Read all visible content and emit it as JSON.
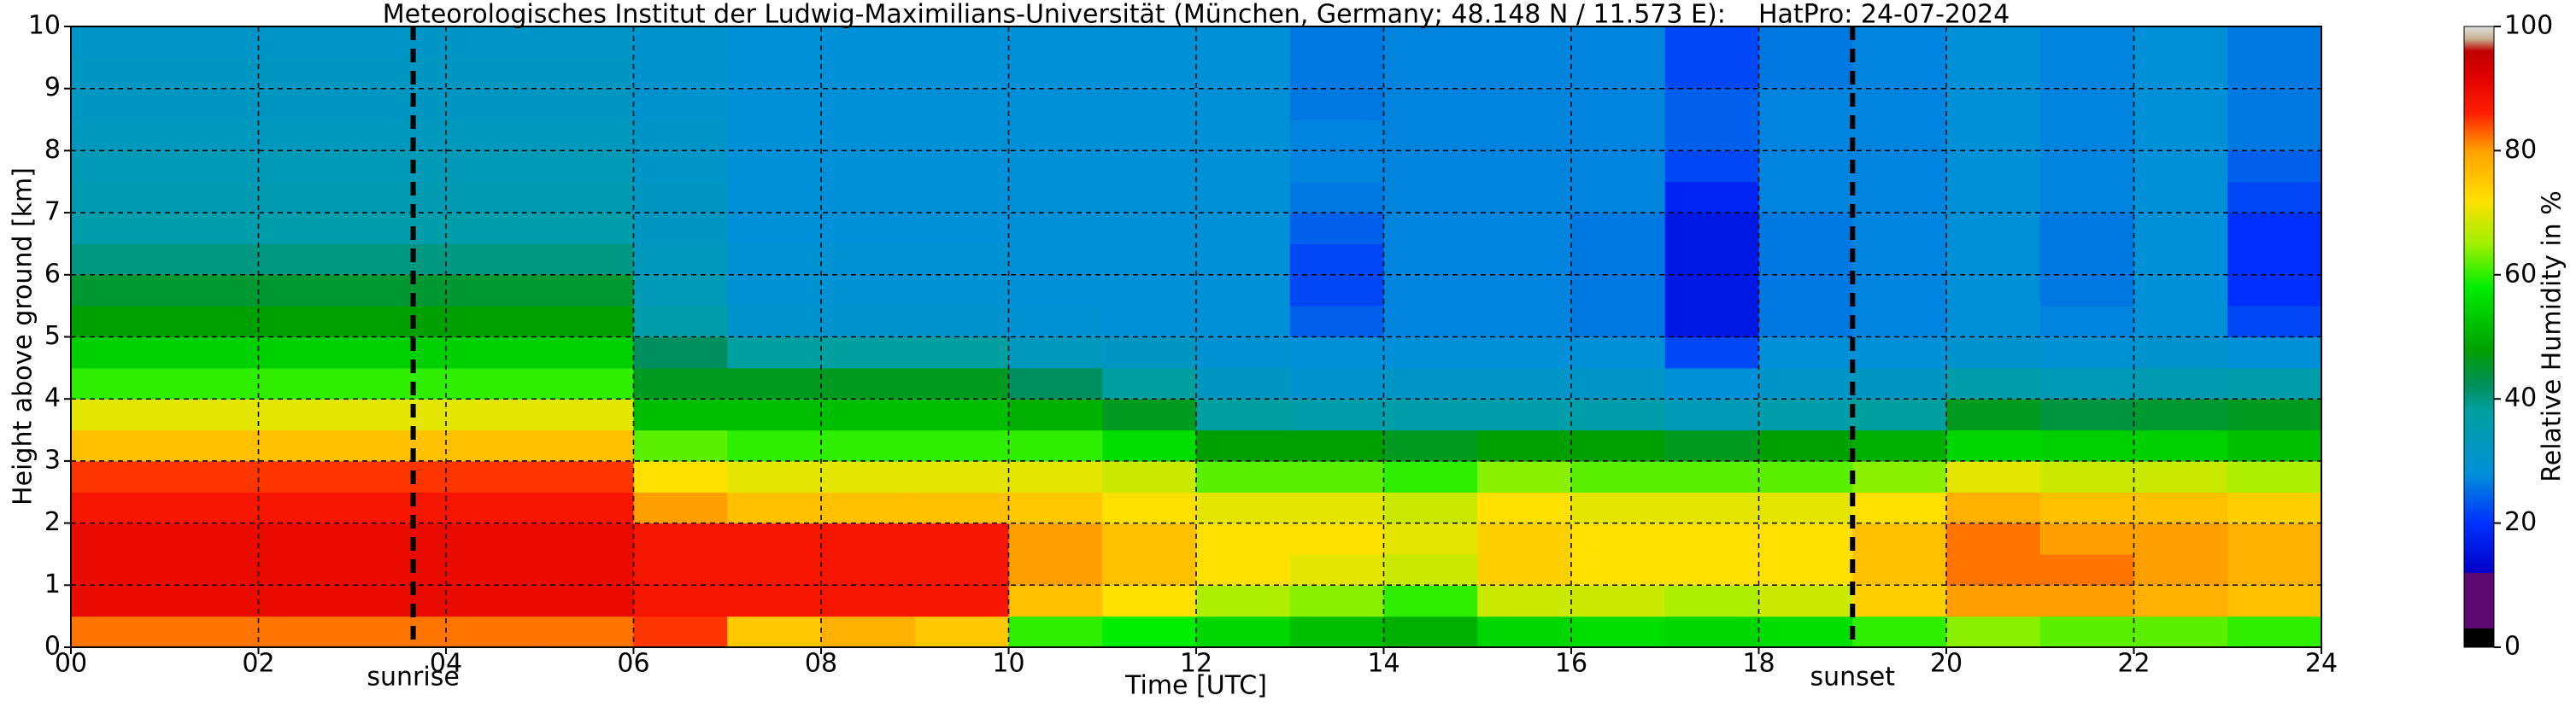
{
  "chart_data": {
    "type": "heatmap",
    "title": "Meteorologisches Institut der Ludwig-Maximilians-Universität (München, Germany; 48.148 N / 11.573 E):    HatPro: 24-07-2024",
    "xlabel": "Time [UTC]",
    "ylabel": "Height above ground [km]",
    "colorbar_label": "Relative Humidity in %",
    "xlim": [
      0,
      24
    ],
    "xticks": [
      {
        "value": 0,
        "label": "00"
      },
      {
        "value": 2,
        "label": "02"
      },
      {
        "value": 4,
        "label": "04"
      },
      {
        "value": 6,
        "label": "06"
      },
      {
        "value": 8,
        "label": "08"
      },
      {
        "value": 10,
        "label": "10"
      },
      {
        "value": 12,
        "label": "12"
      },
      {
        "value": 14,
        "label": "14"
      },
      {
        "value": 16,
        "label": "16"
      },
      {
        "value": 18,
        "label": "18"
      },
      {
        "value": 20,
        "label": "20"
      },
      {
        "value": 22,
        "label": "22"
      },
      {
        "value": 24,
        "label": "24"
      }
    ],
    "ylim": [
      0,
      10
    ],
    "yticks": [
      0,
      1,
      2,
      3,
      4,
      5,
      6,
      7,
      8,
      9,
      10
    ],
    "clim": [
      0,
      100
    ],
    "cticks": [
      0,
      20,
      40,
      60,
      80,
      100
    ],
    "grid": true,
    "colorscale": [
      [
        0,
        "#000000"
      ],
      [
        3,
        "#000000"
      ],
      [
        3,
        "#5a0a6e"
      ],
      [
        12,
        "#5a0a6e"
      ],
      [
        12,
        "#0000c8"
      ],
      [
        20,
        "#0030ff"
      ],
      [
        28,
        "#0090d8"
      ],
      [
        38,
        "#00a0a0"
      ],
      [
        42,
        "#009060"
      ],
      [
        48,
        "#00a000"
      ],
      [
        58,
        "#00ee00"
      ],
      [
        65,
        "#a0f000"
      ],
      [
        72,
        "#ffe000"
      ],
      [
        80,
        "#ffa000"
      ],
      [
        86,
        "#ff2000"
      ],
      [
        92,
        "#e00000"
      ],
      [
        96,
        "#c00000"
      ],
      [
        98,
        "#c8b090"
      ],
      [
        100,
        "#e0e0e0"
      ]
    ],
    "x_bins": [
      0,
      1,
      2,
      3,
      4,
      5,
      6,
      7,
      8,
      9,
      10,
      11,
      12,
      13,
      14,
      15,
      16,
      17,
      18,
      19,
      20,
      21,
      22,
      23,
      24
    ],
    "y_bins": [
      0,
      0.5,
      1,
      1.5,
      2,
      2.5,
      3,
      3.5,
      4,
      4.5,
      5,
      5.5,
      6,
      6.5,
      7,
      7.5,
      8,
      8.5,
      9,
      9.5,
      10
    ],
    "z": [
      [
        82,
        90,
        90,
        90,
        88,
        85,
        76,
        70,
        60,
        54,
        48,
        45,
        40,
        36,
        35,
        34,
        33,
        32,
        32,
        31
      ],
      [
        82,
        90,
        90,
        90,
        88,
        85,
        76,
        70,
        60,
        54,
        48,
        45,
        40,
        36,
        35,
        34,
        33,
        32,
        32,
        31
      ],
      [
        82,
        90,
        90,
        90,
        88,
        85,
        76,
        70,
        60,
        54,
        48,
        45,
        40,
        36,
        35,
        34,
        33,
        32,
        32,
        31
      ],
      [
        82,
        90,
        90,
        90,
        88,
        85,
        76,
        70,
        60,
        54,
        48,
        45,
        40,
        36,
        35,
        34,
        33,
        32,
        32,
        31
      ],
      [
        82,
        90,
        90,
        90,
        88,
        85,
        76,
        70,
        60,
        54,
        48,
        45,
        40,
        36,
        35,
        34,
        33,
        32,
        32,
        31
      ],
      [
        82,
        90,
        90,
        90,
        88,
        85,
        76,
        70,
        60,
        54,
        48,
        45,
        40,
        36,
        35,
        34,
        33,
        32,
        32,
        31
      ],
      [
        85,
        88,
        88,
        88,
        80,
        72,
        62,
        52,
        46,
        42,
        36,
        34,
        33,
        32,
        32,
        31,
        31,
        30,
        30,
        30
      ],
      [
        75,
        88,
        88,
        88,
        76,
        70,
        60,
        52,
        46,
        38,
        30,
        29,
        29,
        28,
        28,
        28,
        28,
        28,
        28,
        28
      ],
      [
        78,
        88,
        88,
        88,
        76,
        70,
        60,
        52,
        46,
        38,
        30,
        29,
        29,
        28,
        28,
        28,
        28,
        28,
        28,
        28
      ],
      [
        75,
        88,
        88,
        88,
        76,
        70,
        60,
        52,
        46,
        38,
        30,
        29,
        29,
        28,
        28,
        28,
        28,
        28,
        28,
        28
      ],
      [
        60,
        76,
        80,
        80,
        75,
        70,
        60,
        50,
        42,
        33,
        29,
        28,
        28,
        28,
        28,
        28,
        28,
        28,
        28,
        28
      ],
      [
        58,
        72,
        76,
        76,
        72,
        68,
        56,
        46,
        38,
        32,
        28,
        28,
        28,
        28,
        28,
        28,
        28,
        28,
        28,
        28
      ],
      [
        55,
        66,
        72,
        72,
        70,
        62,
        48,
        38,
        32,
        29,
        28,
        28,
        28,
        28,
        28,
        28,
        28,
        28,
        28,
        28
      ],
      [
        52,
        64,
        70,
        72,
        70,
        62,
        48,
        36,
        30,
        28,
        24,
        22,
        22,
        24,
        26,
        27,
        27,
        26,
        26,
        26
      ],
      [
        50,
        60,
        68,
        70,
        68,
        60,
        46,
        36,
        31,
        28,
        27,
        27,
        27,
        27,
        27,
        27,
        27,
        27,
        27,
        27
      ],
      [
        55,
        68,
        74,
        74,
        72,
        64,
        48,
        36,
        31,
        28,
        27,
        27,
        27,
        27,
        27,
        27,
        27,
        27,
        27,
        27
      ],
      [
        56,
        68,
        72,
        72,
        70,
        62,
        48,
        36,
        31,
        28,
        26,
        26,
        26,
        26,
        27,
        27,
        27,
        27,
        27,
        27
      ],
      [
        55,
        66,
        72,
        72,
        70,
        62,
        46,
        34,
        28,
        22,
        16,
        16,
        16,
        16,
        18,
        22,
        24,
        24,
        22,
        22
      ],
      [
        56,
        68,
        72,
        72,
        70,
        62,
        48,
        36,
        31,
        28,
        26,
        26,
        26,
        26,
        27,
        27,
        27,
        27,
        26,
        26
      ],
      [
        60,
        74,
        76,
        76,
        72,
        64,
        50,
        38,
        32,
        28,
        27,
        27,
        27,
        27,
        27,
        27,
        27,
        27,
        27,
        27
      ],
      [
        64,
        80,
        82,
        82,
        78,
        70,
        55,
        46,
        36,
        30,
        28,
        28,
        28,
        28,
        28,
        28,
        28,
        28,
        28,
        28
      ],
      [
        62,
        80,
        82,
        80,
        76,
        68,
        54,
        44,
        34,
        29,
        27,
        26,
        26,
        26,
        27,
        27,
        27,
        27,
        27,
        27
      ],
      [
        62,
        78,
        80,
        80,
        76,
        68,
        54,
        45,
        35,
        30,
        28,
        28,
        28,
        28,
        28,
        28,
        28,
        28,
        28,
        28
      ],
      [
        60,
        76,
        78,
        78,
        74,
        66,
        52,
        46,
        36,
        28,
        22,
        20,
        20,
        20,
        22,
        24,
        26,
        26,
        26,
        26
      ]
    ],
    "annotations": [
      {
        "label": "sunrise",
        "x": 3.65
      },
      {
        "label": "sunset",
        "x": 19.0
      }
    ]
  }
}
